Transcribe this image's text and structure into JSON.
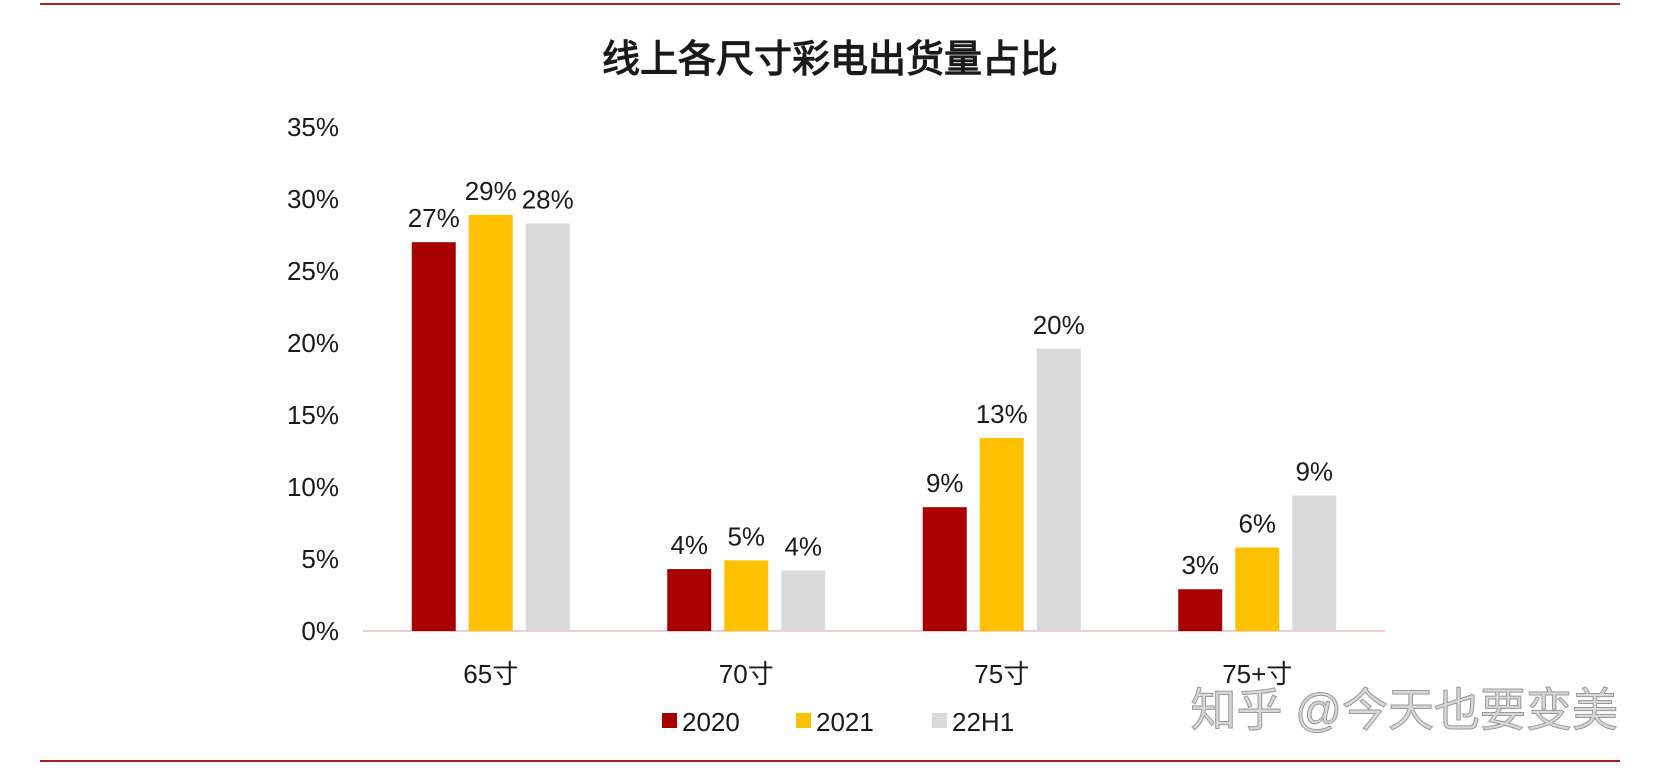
{
  "chart_data": {
    "type": "bar",
    "title": "线上各尺寸彩电出货量占比",
    "xlabel": "",
    "ylabel": "",
    "categories": [
      "65寸",
      "70寸",
      "75寸",
      "75+寸"
    ],
    "series": [
      {
        "name": "2020",
        "color": "#A80000",
        "values": [
          27,
          4.3,
          8.6,
          2.9
        ],
        "labels": [
          "27%",
          "4%",
          "9%",
          "3%"
        ]
      },
      {
        "name": "2021",
        "color": "#FFC000",
        "values": [
          28.9,
          4.9,
          13.4,
          5.8
        ],
        "labels": [
          "29%",
          "5%",
          "13%",
          "6%"
        ]
      },
      {
        "name": "22H1",
        "color": "#D9D9D9",
        "values": [
          28.3,
          4.2,
          19.6,
          9.4
        ],
        "labels": [
          "28%",
          "4%",
          "20%",
          "9%"
        ]
      }
    ],
    "yticks": [
      0,
      5,
      10,
      15,
      20,
      25,
      30,
      35
    ],
    "ytick_labels": [
      "0%",
      "5%",
      "10%",
      "15%",
      "20%",
      "25%",
      "30%",
      "35%"
    ],
    "ylim": [
      0,
      35
    ],
    "grid": false,
    "legend_position": "bottom-center"
  },
  "watermark": {
    "text": "知乎 @今天也要变美"
  },
  "colors": {
    "frame_line": "#B22222",
    "baseline": "#F4CCCC",
    "text": "#1A1A1A"
  }
}
